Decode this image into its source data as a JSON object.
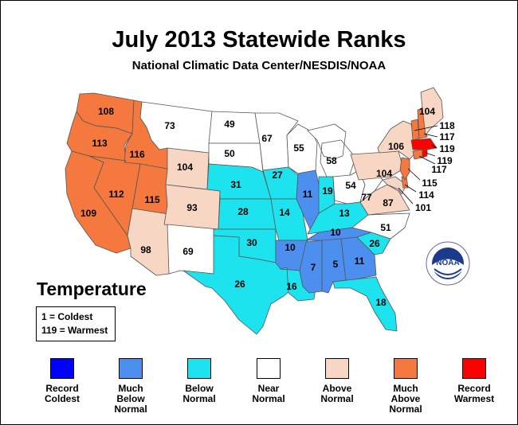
{
  "title": "July 2013 Statewide Ranks",
  "subtitle": "National Climatic Data Center/NESDIS/NOAA",
  "map_label": "Temperature",
  "key": {
    "coldest": "1 = Coldest",
    "warmest": "119 = Warmest"
  },
  "colors": {
    "record_coldest": "#0000ff",
    "much_below": "#4d8fef",
    "below": "#1de3ef",
    "near": "#ffffff",
    "above": "#f7d6c3",
    "much_above": "#f5793e",
    "record_warmest": "#ff0000"
  },
  "legend": [
    {
      "label": "Record\nColdest",
      "color": "#0000ff"
    },
    {
      "label": "Much\nBelow\nNormal",
      "color": "#4d8fef"
    },
    {
      "label": "Below\nNormal",
      "color": "#1de3ef"
    },
    {
      "label": "Near\nNormal",
      "color": "#ffffff"
    },
    {
      "label": "Above\nNormal",
      "color": "#f7d6c3"
    },
    {
      "label": "Much\nAbove\nNormal",
      "color": "#f5793e"
    },
    {
      "label": "Record\nWarmest",
      "color": "#ff0000"
    }
  ],
  "logo_text": "NOAA",
  "states": [
    {
      "state": "Washington",
      "rank": "108",
      "category": "much_above"
    },
    {
      "state": "Oregon",
      "rank": "113",
      "category": "much_above"
    },
    {
      "state": "Idaho",
      "rank": "116",
      "category": "much_above"
    },
    {
      "state": "California",
      "rank": "109",
      "category": "much_above"
    },
    {
      "state": "Nevada",
      "rank": "112",
      "category": "much_above"
    },
    {
      "state": "Utah",
      "rank": "115",
      "category": "much_above"
    },
    {
      "state": "Arizona",
      "rank": "98",
      "category": "above"
    },
    {
      "state": "Montana",
      "rank": "73",
      "category": "near"
    },
    {
      "state": "Wyoming",
      "rank": "104",
      "category": "above"
    },
    {
      "state": "Colorado",
      "rank": "93",
      "category": "above"
    },
    {
      "state": "New Mexico",
      "rank": "69",
      "category": "near"
    },
    {
      "state": "North Dakota",
      "rank": "49",
      "category": "near"
    },
    {
      "state": "South Dakota",
      "rank": "50",
      "category": "near"
    },
    {
      "state": "Nebraska",
      "rank": "31",
      "category": "below"
    },
    {
      "state": "Kansas",
      "rank": "28",
      "category": "below"
    },
    {
      "state": "Oklahoma",
      "rank": "30",
      "category": "below"
    },
    {
      "state": "Texas",
      "rank": "26",
      "category": "below"
    },
    {
      "state": "Minnesota",
      "rank": "67",
      "category": "near"
    },
    {
      "state": "Iowa",
      "rank": "27",
      "category": "below"
    },
    {
      "state": "Missouri",
      "rank": "14",
      "category": "below"
    },
    {
      "state": "Arkansas",
      "rank": "10",
      "category": "much_below"
    },
    {
      "state": "Louisiana",
      "rank": "16",
      "category": "below"
    },
    {
      "state": "Wisconsin",
      "rank": "55",
      "category": "near"
    },
    {
      "state": "Illinois",
      "rank": "11",
      "category": "much_below"
    },
    {
      "state": "Michigan",
      "rank": "58",
      "category": "near"
    },
    {
      "state": "Indiana",
      "rank": "19",
      "category": "below"
    },
    {
      "state": "Ohio",
      "rank": "54",
      "category": "near"
    },
    {
      "state": "Kentucky",
      "rank": "13",
      "category": "below"
    },
    {
      "state": "Tennessee",
      "rank": "10",
      "category": "much_below"
    },
    {
      "state": "Mississippi",
      "rank": "7",
      "category": "much_below"
    },
    {
      "state": "Alabama",
      "rank": "5",
      "category": "much_below"
    },
    {
      "state": "Georgia",
      "rank": "11",
      "category": "much_below"
    },
    {
      "state": "Florida",
      "rank": "18",
      "category": "below"
    },
    {
      "state": "South Carolina",
      "rank": "26",
      "category": "below"
    },
    {
      "state": "North Carolina",
      "rank": "51",
      "category": "near"
    },
    {
      "state": "Virginia",
      "rank": "87",
      "category": "above"
    },
    {
      "state": "West Virginia",
      "rank": "77",
      "category": "near"
    },
    {
      "state": "Pennsylvania",
      "rank": "104",
      "category": "above"
    },
    {
      "state": "New York",
      "rank": "106",
      "category": "above"
    },
    {
      "state": "Maryland",
      "rank": "101",
      "category": "above"
    },
    {
      "state": "Delaware",
      "rank": "114",
      "category": "much_above"
    },
    {
      "state": "New Jersey",
      "rank": "115",
      "category": "much_above"
    },
    {
      "state": "Connecticut",
      "rank": "117",
      "category": "much_above"
    },
    {
      "state": "Rhode Island",
      "rank": "119",
      "category": "record_warmest"
    },
    {
      "state": "Massachusetts",
      "rank": "119",
      "category": "record_warmest"
    },
    {
      "state": "Vermont",
      "rank": "118",
      "category": "much_above"
    },
    {
      "state": "New Hampshire",
      "rank": "117",
      "category": "much_above"
    },
    {
      "state": "Maine",
      "rank": "104",
      "category": "above"
    }
  ]
}
